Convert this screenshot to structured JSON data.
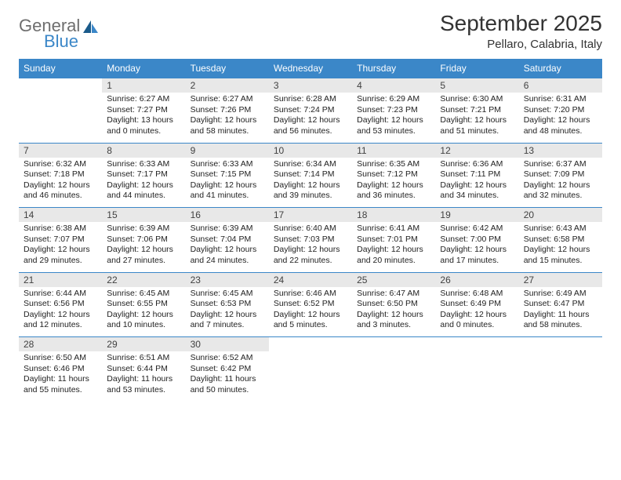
{
  "logo": {
    "word1": "General",
    "word2": "Blue"
  },
  "title": "September 2025",
  "subtitle": "Pellaro, Calabria, Italy",
  "colors": {
    "header_bg": "#3b87c8",
    "header_text": "#ffffff",
    "daynum_bg": "#e8e8e8",
    "border": "#3b87c8",
    "logo_gray": "#6e6e6e",
    "logo_blue": "#3b87c8",
    "text": "#222222"
  },
  "day_headers": [
    "Sunday",
    "Monday",
    "Tuesday",
    "Wednesday",
    "Thursday",
    "Friday",
    "Saturday"
  ],
  "weeks": [
    {
      "nums": [
        "",
        "1",
        "2",
        "3",
        "4",
        "5",
        "6"
      ],
      "cells": [
        {},
        {
          "sunrise": "6:27 AM",
          "sunset": "7:27 PM",
          "daylight": "13 hours and 0 minutes."
        },
        {
          "sunrise": "6:27 AM",
          "sunset": "7:26 PM",
          "daylight": "12 hours and 58 minutes."
        },
        {
          "sunrise": "6:28 AM",
          "sunset": "7:24 PM",
          "daylight": "12 hours and 56 minutes."
        },
        {
          "sunrise": "6:29 AM",
          "sunset": "7:23 PM",
          "daylight": "12 hours and 53 minutes."
        },
        {
          "sunrise": "6:30 AM",
          "sunset": "7:21 PM",
          "daylight": "12 hours and 51 minutes."
        },
        {
          "sunrise": "6:31 AM",
          "sunset": "7:20 PM",
          "daylight": "12 hours and 48 minutes."
        }
      ]
    },
    {
      "nums": [
        "7",
        "8",
        "9",
        "10",
        "11",
        "12",
        "13"
      ],
      "cells": [
        {
          "sunrise": "6:32 AM",
          "sunset": "7:18 PM",
          "daylight": "12 hours and 46 minutes."
        },
        {
          "sunrise": "6:33 AM",
          "sunset": "7:17 PM",
          "daylight": "12 hours and 44 minutes."
        },
        {
          "sunrise": "6:33 AM",
          "sunset": "7:15 PM",
          "daylight": "12 hours and 41 minutes."
        },
        {
          "sunrise": "6:34 AM",
          "sunset": "7:14 PM",
          "daylight": "12 hours and 39 minutes."
        },
        {
          "sunrise": "6:35 AM",
          "sunset": "7:12 PM",
          "daylight": "12 hours and 36 minutes."
        },
        {
          "sunrise": "6:36 AM",
          "sunset": "7:11 PM",
          "daylight": "12 hours and 34 minutes."
        },
        {
          "sunrise": "6:37 AM",
          "sunset": "7:09 PM",
          "daylight": "12 hours and 32 minutes."
        }
      ]
    },
    {
      "nums": [
        "14",
        "15",
        "16",
        "17",
        "18",
        "19",
        "20"
      ],
      "cells": [
        {
          "sunrise": "6:38 AM",
          "sunset": "7:07 PM",
          "daylight": "12 hours and 29 minutes."
        },
        {
          "sunrise": "6:39 AM",
          "sunset": "7:06 PM",
          "daylight": "12 hours and 27 minutes."
        },
        {
          "sunrise": "6:39 AM",
          "sunset": "7:04 PM",
          "daylight": "12 hours and 24 minutes."
        },
        {
          "sunrise": "6:40 AM",
          "sunset": "7:03 PM",
          "daylight": "12 hours and 22 minutes."
        },
        {
          "sunrise": "6:41 AM",
          "sunset": "7:01 PM",
          "daylight": "12 hours and 20 minutes."
        },
        {
          "sunrise": "6:42 AM",
          "sunset": "7:00 PM",
          "daylight": "12 hours and 17 minutes."
        },
        {
          "sunrise": "6:43 AM",
          "sunset": "6:58 PM",
          "daylight": "12 hours and 15 minutes."
        }
      ]
    },
    {
      "nums": [
        "21",
        "22",
        "23",
        "24",
        "25",
        "26",
        "27"
      ],
      "cells": [
        {
          "sunrise": "6:44 AM",
          "sunset": "6:56 PM",
          "daylight": "12 hours and 12 minutes."
        },
        {
          "sunrise": "6:45 AM",
          "sunset": "6:55 PM",
          "daylight": "12 hours and 10 minutes."
        },
        {
          "sunrise": "6:45 AM",
          "sunset": "6:53 PM",
          "daylight": "12 hours and 7 minutes."
        },
        {
          "sunrise": "6:46 AM",
          "sunset": "6:52 PM",
          "daylight": "12 hours and 5 minutes."
        },
        {
          "sunrise": "6:47 AM",
          "sunset": "6:50 PM",
          "daylight": "12 hours and 3 minutes."
        },
        {
          "sunrise": "6:48 AM",
          "sunset": "6:49 PM",
          "daylight": "12 hours and 0 minutes."
        },
        {
          "sunrise": "6:49 AM",
          "sunset": "6:47 PM",
          "daylight": "11 hours and 58 minutes."
        }
      ]
    },
    {
      "nums": [
        "28",
        "29",
        "30",
        "",
        "",
        "",
        ""
      ],
      "cells": [
        {
          "sunrise": "6:50 AM",
          "sunset": "6:46 PM",
          "daylight": "11 hours and 55 minutes."
        },
        {
          "sunrise": "6:51 AM",
          "sunset": "6:44 PM",
          "daylight": "11 hours and 53 minutes."
        },
        {
          "sunrise": "6:52 AM",
          "sunset": "6:42 PM",
          "daylight": "11 hours and 50 minutes."
        },
        {},
        {},
        {},
        {}
      ]
    }
  ],
  "labels": {
    "sunrise": "Sunrise: ",
    "sunset": "Sunset: ",
    "daylight": "Daylight: "
  }
}
